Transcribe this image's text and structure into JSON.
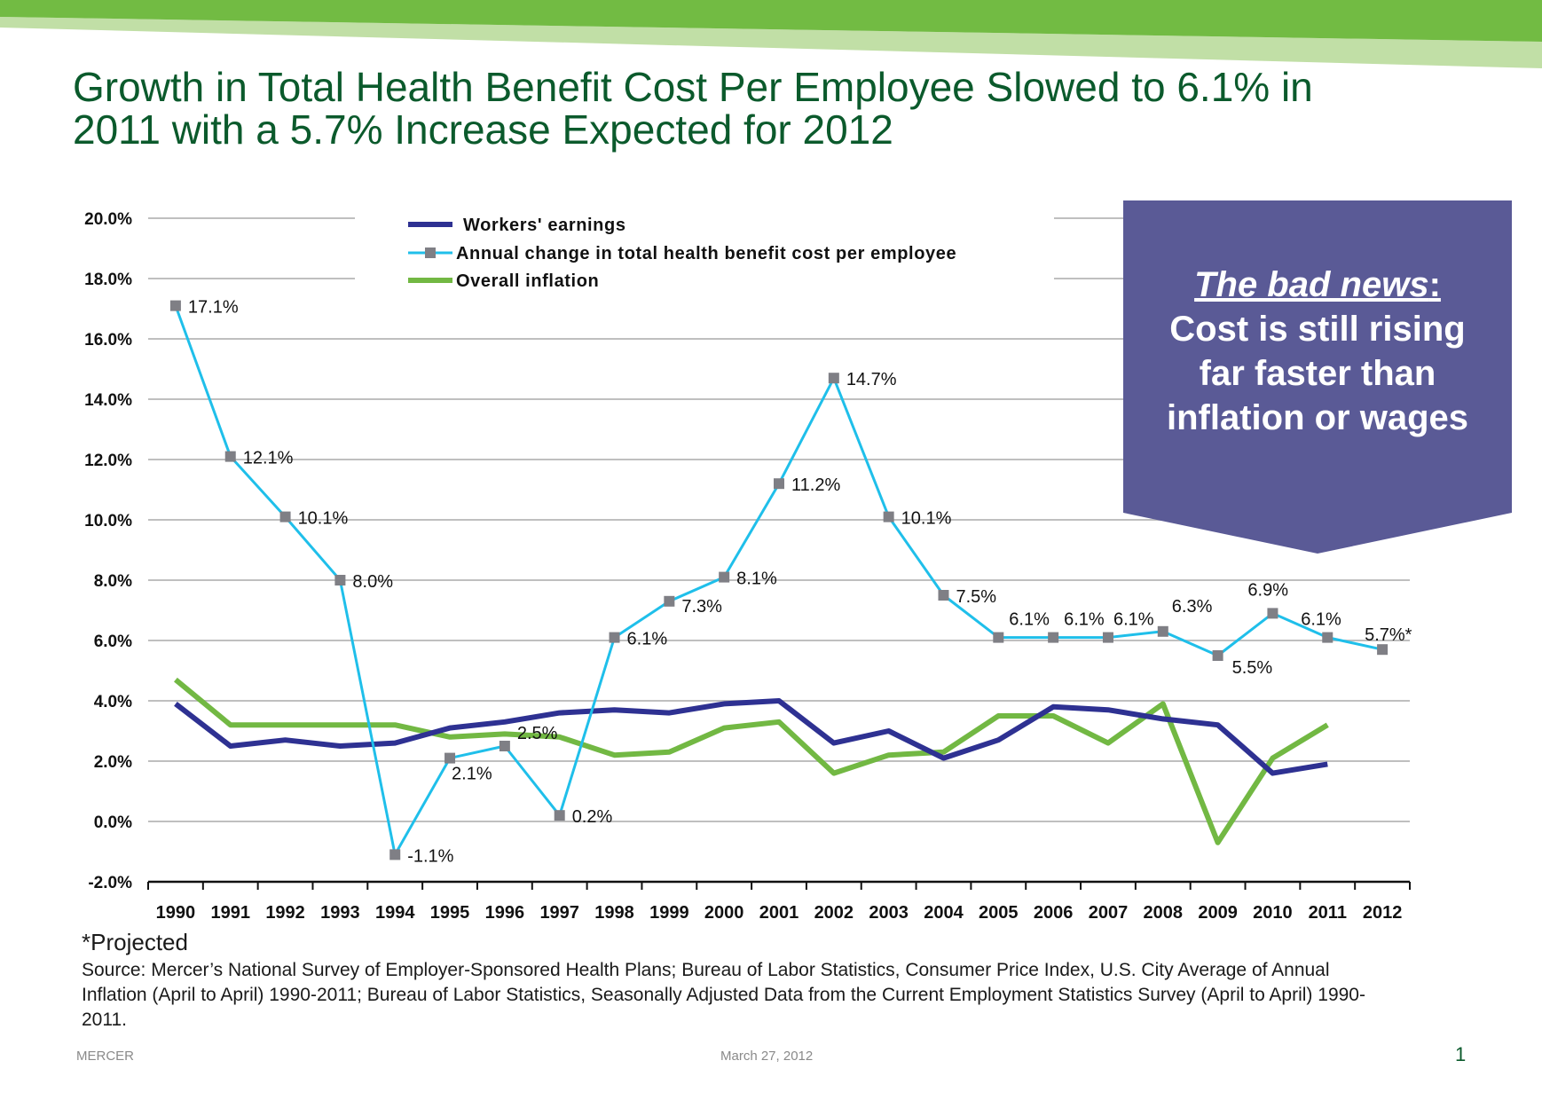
{
  "slide": {
    "title_line1": "Growth in Total Health Benefit Cost Per Employee Slowed to 6.1% in",
    "title_line2": "2011 with a 5.7% Increase Expected for 2012",
    "banner_colors": {
      "dark": "#72bb43",
      "light": "#c1dfa6"
    },
    "title_color": "#0b5a2c"
  },
  "callout": {
    "heading": "The bad news",
    "heading_colon": ":",
    "line1": "Cost is still rising",
    "line2": "far faster than",
    "line3": "inflation or wages",
    "color": "#5a5a96"
  },
  "footer": {
    "footnote": "*Projected",
    "source": "Source: Mercer’s National Survey of Employer-Sponsored Health Plans; Bureau of Labor Statistics, Consumer Price Index, U.S. City Average of Annual Inflation (April to April) 1990-2011; Bureau of Labor Statistics, Seasonally Adjusted Data from the Current Employment Statistics Survey (April to April) 1990-2011.",
    "company": "MERCER",
    "date": "March 27, 2012",
    "page_number": "1"
  },
  "chart_data": {
    "type": "line",
    "title": "",
    "xlabel": "",
    "ylabel": "",
    "categories": [
      "1990",
      "1991",
      "1992",
      "1993",
      "1994",
      "1995",
      "1996",
      "1997",
      "1998",
      "1999",
      "2000",
      "2001",
      "2002",
      "2003",
      "2004",
      "2005",
      "2006",
      "2007",
      "2008",
      "2009",
      "2010",
      "2011",
      "2012"
    ],
    "ylim": [
      -2.0,
      20.0
    ],
    "yticks": [
      -2.0,
      0.0,
      2.0,
      4.0,
      6.0,
      8.0,
      10.0,
      12.0,
      14.0,
      16.0,
      18.0,
      20.0
    ],
    "ytick_labels": [
      "-2.0%",
      "0.0%",
      "2.0%",
      "4.0%",
      "6.0%",
      "8.0%",
      "10.0%",
      "12.0%",
      "14.0%",
      "16.0%",
      "18.0%",
      "20.0%"
    ],
    "grid": true,
    "legend_position": "top-center",
    "series": [
      {
        "name": "Workers' earnings",
        "color": "#2e3192",
        "marker": "none",
        "values": [
          3.9,
          2.5,
          2.7,
          2.5,
          2.6,
          3.1,
          3.3,
          3.6,
          3.7,
          3.6,
          3.9,
          4.0,
          2.6,
          3.0,
          2.1,
          2.7,
          3.8,
          3.7,
          3.4,
          3.2,
          1.6,
          1.9,
          null
        ]
      },
      {
        "name": "Annual change in total health benefit cost per employee",
        "color": "#1fbfea",
        "marker": "square",
        "marker_color": "#7f7f85",
        "values": [
          17.1,
          12.1,
          10.1,
          8.0,
          -1.1,
          2.1,
          2.5,
          0.2,
          6.1,
          7.3,
          8.1,
          11.2,
          14.7,
          10.1,
          7.5,
          6.1,
          6.1,
          6.1,
          6.3,
          5.5,
          6.9,
          6.1,
          5.7
        ],
        "data_labels": [
          "17.1%",
          "12.1%",
          "10.1%",
          "8.0%",
          "-1.1%",
          "2.1%",
          "2.5%",
          "0.2%",
          "6.1%",
          "7.3%",
          "8.1%",
          "11.2%",
          "14.7%",
          "10.1%",
          "7.5%",
          "6.1%",
          "6.1%",
          "6.1%",
          "6.3%",
          "5.5%",
          "6.9%",
          "6.1%",
          "5.7%*"
        ]
      },
      {
        "name": "Overall inflation",
        "color": "#72b843",
        "marker": "none",
        "values": [
          4.7,
          3.2,
          3.2,
          3.2,
          3.2,
          2.8,
          2.9,
          2.8,
          2.2,
          2.3,
          3.1,
          3.3,
          1.6,
          2.2,
          2.3,
          3.5,
          3.5,
          2.6,
          3.9,
          -0.7,
          2.1,
          3.2,
          null
        ]
      }
    ]
  }
}
